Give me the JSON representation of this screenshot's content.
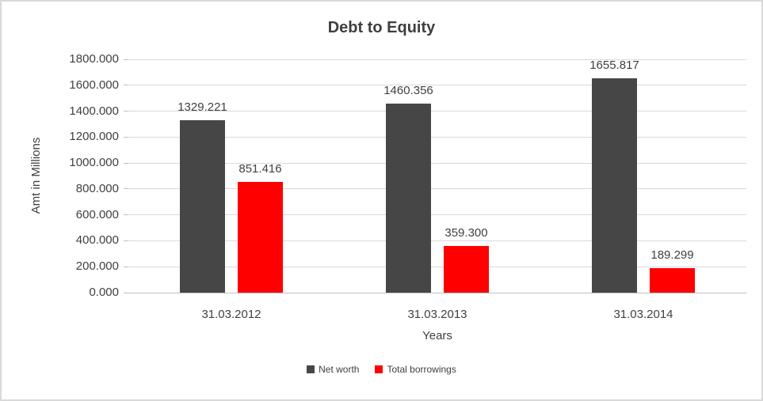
{
  "chart_data": {
    "type": "bar",
    "title": "Debt to Equity",
    "xlabel": "Years",
    "ylabel": "Amt in Millions",
    "categories": [
      "31.03.2012",
      "31.03.2013",
      "31.03.2014"
    ],
    "series": [
      {
        "name": "Net worth",
        "color": "#464646",
        "values": [
          1329.221,
          1460.356,
          1655.817
        ]
      },
      {
        "name": "Total borrowings",
        "color": "#ff0000",
        "values": [
          851.416,
          359.3,
          189.299
        ]
      }
    ],
    "ylim": [
      0,
      1800
    ],
    "ytick_step": 200,
    "tick_decimals": 3,
    "label_decimals": 3,
    "grid": true,
    "legend_position": "bottom"
  },
  "frame": {
    "border_color": "#d9d9d9",
    "background": "#ffffff",
    "text_color": "#404040",
    "grid_color": "#d9d9d9",
    "axis_color": "#bfbfbf"
  }
}
